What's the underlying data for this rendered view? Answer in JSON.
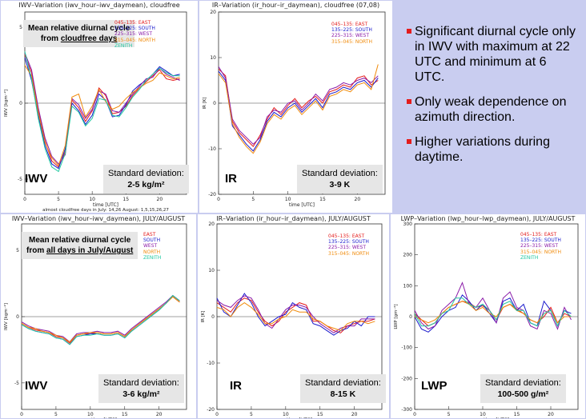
{
  "bullets": [
    "Significant diurnal cycle only in IWV with maximum at 22 UTC and minimum at 6 UTC.",
    "Only weak dependence on azimuth direction.",
    "Higher variations during daytime."
  ],
  "legend_colors": {
    "EAST": "#e41c1c",
    "SOUTH": "#1a1acc",
    "WEST": "#8a1aa8",
    "NORTH": "#f08a0a",
    "ZENITH": "#20c8a0"
  },
  "panels": [
    {
      "id": "p1",
      "title": "IWV–Variation (iwv_hour–iwv_daymean), cloudfree",
      "ylabel": "IWV [kgm⁻²]",
      "xlabel": "time [UTC]",
      "footer": "almost cloudfree days in July: 14,26 August: 1,5,15,26,27",
      "big": "IWV",
      "sd_label": "Standard deviation:",
      "sd_value": "2-5 kg/m²",
      "mean_line1": "Mean relative diurnal cycle",
      "mean_line2_pre": "from ",
      "mean_line2_u": "cloudfree days",
      "legend": [
        "045–135: EAST",
        "135–225: SOUTH",
        "225–315: WEST",
        "315–045: NORTH",
        "ZENITH"
      ],
      "xticks": [
        "0",
        "5",
        "10",
        "15",
        "20"
      ],
      "yticks": [
        "5",
        "0",
        "-5"
      ]
    },
    {
      "id": "p2",
      "title": "IR–Variation (ir_hour–ir_daymean), cloudfree (07,08)",
      "ylabel": "IR [K]",
      "xlabel": "time [UTC]",
      "big": "IR",
      "sd_label": "Standard deviation:",
      "sd_value": "3-9 K",
      "legend": [
        "045–135: EAST",
        "135–225: SOUTH",
        "225–315: WEST",
        "315–045: NORTH"
      ],
      "xticks": [
        "0",
        "5",
        "10",
        "15",
        "20"
      ],
      "yticks": [
        "20",
        "10",
        "0",
        "-10",
        "-20"
      ]
    },
    {
      "id": "p3",
      "title": "IWV–Variation (iwv_hour–iwv_daymean), JULY/AUGUST",
      "ylabel": "IWV [kgm⁻²]",
      "xlabel": "time [UTC]",
      "big": "IWV",
      "sd_label": "Standard deviation:",
      "sd_value": "3-6 kg/m²",
      "mean_line1": "Mean relative diurnal cycle",
      "mean_line2_pre": "from ",
      "mean_line2_u": "all days in July/August",
      "legend": [
        "EAST",
        "SOUTH",
        "WEST",
        "NORTH",
        "ZENITH"
      ],
      "xticks": [
        "0",
        "5",
        "10",
        "15",
        "20"
      ],
      "yticks": [
        "5",
        "0",
        "-5"
      ]
    },
    {
      "id": "p4",
      "title": "IR–Variation (ir_hour–ir_daymean), JULY/AUGUST",
      "ylabel": "IR [K]",
      "xlabel": "time [UTC]",
      "big": "IR",
      "sd_label": "Standard deviation:",
      "sd_value": "8-15 K",
      "legend": [
        "045–135: EAST",
        "135–225: SOUTH",
        "225–315: WEST",
        "315–045: NORTH"
      ],
      "xticks": [
        "0",
        "5",
        "10",
        "15",
        "20"
      ],
      "yticks": [
        "20",
        "10",
        "0",
        "-10",
        "-20"
      ]
    },
    {
      "id": "p5",
      "title": "LWP–Variation (lwp_hour–lwp_daymean), JULY/AUGUST",
      "ylabel": "LWP [gm⁻²]",
      "xlabel": "time [UTC]",
      "big": "LWP",
      "sd_label": "Standard deviation:",
      "sd_value": "100-500 g/m²",
      "legend": [
        "045–135: EAST",
        "135–225: SOUTH",
        "225–315: WEST",
        "315–045: NORTH",
        "ZENITH"
      ],
      "xticks": [
        "0",
        "5",
        "10",
        "15",
        "20"
      ],
      "yticks": [
        "300",
        "200",
        "100",
        "0",
        "-100",
        "-200",
        "-300"
      ]
    }
  ],
  "chart_data": [
    {
      "type": "line",
      "panel": "p1",
      "title": "IWV–Variation (iwv_hour–iwv_daymean), cloudfree",
      "xlabel": "time [UTC]",
      "ylabel": "IWV [kgm⁻²]",
      "xlim": [
        0,
        24
      ],
      "ylim": [
        -6,
        6
      ],
      "x": [
        0,
        1,
        2,
        3,
        4,
        5,
        6,
        7,
        8,
        9,
        10,
        11,
        12,
        13,
        14,
        15,
        16,
        17,
        18,
        19,
        20,
        21,
        22,
        23
      ],
      "series": [
        {
          "name": "045–135: EAST",
          "color": "#e41c1c",
          "values": [
            3.2,
            2.0,
            -0.5,
            -2.5,
            -3.8,
            -4.2,
            -3.2,
            0.2,
            -0.3,
            -1.2,
            -0.5,
            1.0,
            0.5,
            -0.7,
            -0.6,
            -0.2,
            0.5,
            1.0,
            1.4,
            1.8,
            2.2,
            1.6,
            1.5,
            1.6
          ]
        },
        {
          "name": "135–225: SOUTH",
          "color": "#1a1acc",
          "values": [
            3.0,
            1.5,
            -0.8,
            -2.8,
            -4.0,
            -4.3,
            -3.0,
            0.0,
            -0.5,
            -1.4,
            -0.8,
            0.6,
            0.2,
            -0.9,
            -0.8,
            -0.1,
            0.8,
            1.2,
            1.5,
            1.9,
            2.4,
            2.1,
            1.8,
            1.9
          ]
        },
        {
          "name": "225–315: WEST",
          "color": "#8a1aa8",
          "values": [
            3.3,
            2.2,
            -0.3,
            -2.3,
            -3.5,
            -4.0,
            -3.4,
            0.3,
            -0.1,
            -1.0,
            -0.4,
            0.8,
            0.6,
            -0.5,
            -0.6,
            0.0,
            0.6,
            1.1,
            1.6,
            1.7,
            2.3,
            1.9,
            1.7,
            1.5
          ]
        },
        {
          "name": "315–045: NORTH",
          "color": "#f08a0a",
          "values": [
            2.5,
            1.8,
            -0.6,
            -2.6,
            -3.6,
            -4.1,
            -2.8,
            0.4,
            0.6,
            -0.9,
            -0.2,
            0.9,
            0.1,
            -0.4,
            -0.2,
            0.3,
            0.7,
            1.0,
            1.3,
            1.5,
            2.0,
            1.8,
            1.6,
            1.7
          ]
        },
        {
          "name": "ZENITH",
          "color": "#20c8a0",
          "values": [
            3.4,
            1.6,
            -1.0,
            -3.0,
            -4.2,
            -4.5,
            -3.3,
            -0.2,
            -0.6,
            -1.5,
            -1.0,
            0.3,
            0.2,
            -0.8,
            -0.9,
            -0.3,
            0.4,
            0.9,
            1.5,
            1.9,
            2.3,
            2.0,
            1.8,
            1.8
          ]
        }
      ]
    },
    {
      "type": "line",
      "panel": "p2",
      "title": "IR–Variation (ir_hour–ir_daymean), cloudfree (07,08)",
      "xlabel": "time [UTC]",
      "ylabel": "IR [K]",
      "xlim": [
        0,
        24
      ],
      "ylim": [
        -20,
        20
      ],
      "x": [
        0,
        1,
        2,
        3,
        4,
        5,
        6,
        7,
        8,
        9,
        10,
        11,
        12,
        13,
        14,
        15,
        16,
        17,
        18,
        19,
        20,
        21,
        22,
        23
      ],
      "series": [
        {
          "name": "045–135: EAST",
          "color": "#e41c1c",
          "values": [
            7.5,
            6.0,
            -4.0,
            -6.5,
            -8.0,
            -9.5,
            -7.0,
            -3.5,
            -1.0,
            -2.5,
            -0.5,
            1.0,
            -1.0,
            0.5,
            1.5,
            0.0,
            2.5,
            3.0,
            4.0,
            3.5,
            5.5,
            6.0,
            4.0,
            5.0
          ]
        },
        {
          "name": "135–225: SOUTH",
          "color": "#1a1acc",
          "values": [
            7.0,
            5.0,
            -5.0,
            -7.0,
            -9.0,
            -10.5,
            -8.0,
            -4.0,
            -2.0,
            -3.0,
            -1.0,
            0.0,
            -2.0,
            -0.5,
            1.0,
            -1.0,
            2.0,
            2.5,
            3.5,
            3.0,
            4.5,
            5.0,
            3.5,
            5.5
          ]
        },
        {
          "name": "225–315: WEST",
          "color": "#8a1aa8",
          "values": [
            8.0,
            5.5,
            -3.5,
            -6.0,
            -7.5,
            -9.0,
            -7.5,
            -3.0,
            -1.5,
            -2.0,
            0.0,
            0.5,
            -1.5,
            0.0,
            2.0,
            0.5,
            3.0,
            3.5,
            4.5,
            4.0,
            5.0,
            5.5,
            4.5,
            6.0
          ]
        },
        {
          "name": "315–045: NORTH",
          "color": "#f08a0a",
          "values": [
            6.5,
            4.5,
            -4.5,
            -7.5,
            -9.5,
            -11.0,
            -8.5,
            -4.5,
            -2.5,
            -3.5,
            -1.5,
            -0.5,
            -2.5,
            -1.0,
            0.5,
            -1.5,
            1.5,
            2.0,
            3.0,
            2.5,
            4.0,
            4.5,
            3.0,
            8.5
          ]
        }
      ]
    },
    {
      "type": "line",
      "panel": "p3",
      "title": "IWV–Variation (iwv_hour–iwv_daymean), JULY/AUGUST",
      "xlabel": "time [UTC]",
      "ylabel": "IWV [kgm⁻²]",
      "xlim": [
        0,
        24
      ],
      "ylim": [
        -7,
        7
      ],
      "x": [
        0,
        1,
        2,
        3,
        4,
        5,
        6,
        7,
        8,
        9,
        10,
        11,
        12,
        13,
        14,
        15,
        16,
        17,
        18,
        19,
        20,
        21,
        22,
        23
      ],
      "series": [
        {
          "name": "EAST",
          "color": "#e41c1c",
          "values": [
            -0.5,
            -0.8,
            -1.0,
            -1.1,
            -1.2,
            -1.5,
            -1.6,
            -2.0,
            -1.4,
            -1.3,
            -1.3,
            -1.2,
            -1.3,
            -1.3,
            -1.2,
            -1.5,
            -1.0,
            -0.6,
            -0.2,
            0.2,
            0.6,
            1.0,
            1.5,
            1.1
          ]
        },
        {
          "name": "SOUTH",
          "color": "#1a1acc",
          "values": [
            -0.6,
            -0.9,
            -1.1,
            -1.2,
            -1.3,
            -1.6,
            -1.7,
            -2.1,
            -1.5,
            -1.4,
            -1.3,
            -1.3,
            -1.4,
            -1.4,
            -1.3,
            -1.6,
            -1.1,
            -0.7,
            -0.3,
            0.1,
            0.5,
            1.0,
            1.6,
            1.2
          ]
        },
        {
          "name": "WEST",
          "color": "#8a1aa8",
          "values": [
            -0.4,
            -0.7,
            -0.9,
            -1.0,
            -1.1,
            -1.4,
            -1.5,
            -1.9,
            -1.3,
            -1.2,
            -1.2,
            -1.1,
            -1.2,
            -1.2,
            -1.1,
            -1.4,
            -0.9,
            -0.5,
            -0.1,
            0.3,
            0.7,
            1.1,
            1.6,
            1.2
          ]
        },
        {
          "name": "NORTH",
          "color": "#f08a0a",
          "values": [
            -0.5,
            -0.8,
            -0.9,
            -1.1,
            -1.2,
            -1.4,
            -1.6,
            -1.9,
            -1.4,
            -1.3,
            -1.2,
            -1.2,
            -1.3,
            -1.3,
            -1.2,
            -1.5,
            -1.0,
            -0.6,
            -0.2,
            0.2,
            0.6,
            1.0,
            1.5,
            1.1
          ]
        },
        {
          "name": "ZENITH",
          "color": "#20c8a0",
          "values": [
            -0.6,
            -0.9,
            -1.1,
            -1.2,
            -1.3,
            -1.6,
            -1.7,
            -2.1,
            -1.5,
            -1.4,
            -1.4,
            -1.3,
            -1.4,
            -1.4,
            -1.3,
            -1.6,
            -1.1,
            -0.7,
            -0.3,
            0.1,
            0.5,
            1.0,
            1.6,
            1.2
          ]
        }
      ]
    },
    {
      "type": "line",
      "panel": "p4",
      "title": "IR–Variation (ir_hour–ir_daymean), JULY/AUGUST",
      "xlabel": "time [UTC]",
      "ylabel": "IR [K]",
      "xlim": [
        0,
        24
      ],
      "ylim": [
        -20,
        20
      ],
      "x": [
        0,
        1,
        2,
        3,
        4,
        5,
        6,
        7,
        8,
        9,
        10,
        11,
        12,
        13,
        14,
        15,
        16,
        17,
        18,
        19,
        20,
        21,
        22,
        23
      ],
      "series": [
        {
          "name": "045–135: EAST",
          "color": "#e41c1c",
          "values": [
            3.0,
            2.0,
            1.0,
            3.0,
            4.0,
            3.5,
            1.0,
            -1.0,
            -2.0,
            -1.0,
            1.0,
            2.0,
            3.0,
            2.5,
            -1.0,
            -1.0,
            -2.0,
            -3.0,
            -3.5,
            -2.0,
            -1.5,
            -1.0,
            -1.0,
            -0.5
          ]
        },
        {
          "name": "135–225: SOUTH",
          "color": "#1a1acc",
          "values": [
            4.0,
            1.0,
            0.0,
            2.5,
            5.0,
            3.0,
            0.0,
            -2.0,
            -1.0,
            0.0,
            0.5,
            3.0,
            2.0,
            1.5,
            -1.5,
            -2.0,
            -3.0,
            -4.0,
            -3.0,
            -2.5,
            -1.0,
            -2.0,
            0.0,
            0.0
          ]
        },
        {
          "name": "225–315: WEST",
          "color": "#8a1aa8",
          "values": [
            3.5,
            2.5,
            2.0,
            3.5,
            4.5,
            4.0,
            1.5,
            -1.5,
            -2.5,
            -0.5,
            1.5,
            2.5,
            2.5,
            2.0,
            0.0,
            -1.5,
            -2.5,
            -3.5,
            -2.5,
            -2.0,
            -2.0,
            -0.5,
            -0.5,
            -0.5
          ]
        },
        {
          "name": "315–045: NORTH",
          "color": "#f08a0a",
          "values": [
            2.0,
            1.5,
            0.0,
            2.0,
            3.0,
            2.0,
            0.5,
            -1.5,
            -1.5,
            -0.5,
            0.0,
            1.5,
            1.0,
            1.0,
            -0.5,
            -1.0,
            -2.0,
            -2.5,
            -3.0,
            -1.5,
            -1.0,
            -1.0,
            -1.5,
            -1.0
          ]
        }
      ]
    },
    {
      "type": "line",
      "panel": "p5",
      "title": "LWP–Variation (lwp_hour–lwp_daymean), JULY/AUGUST",
      "xlabel": "time [UTC]",
      "ylabel": "LWP [gm⁻²]",
      "xlim": [
        0,
        24
      ],
      "ylim": [
        -300,
        300
      ],
      "x": [
        0,
        1,
        2,
        3,
        4,
        5,
        6,
        7,
        8,
        9,
        10,
        11,
        12,
        13,
        14,
        15,
        16,
        17,
        18,
        19,
        20,
        21,
        22,
        23
      ],
      "series": [
        {
          "name": "045–135: EAST",
          "color": "#e41c1c",
          "values": [
            10,
            -10,
            -30,
            -20,
            10,
            30,
            40,
            50,
            45,
            30,
            35,
            20,
            -10,
            30,
            40,
            25,
            10,
            -10,
            -20,
            0,
            30,
            -20,
            10,
            0
          ]
        },
        {
          "name": "135–225: SOUTH",
          "color": "#1a1acc",
          "values": [
            0,
            -40,
            -50,
            -30,
            0,
            20,
            30,
            70,
            50,
            20,
            40,
            10,
            -20,
            50,
            60,
            20,
            40,
            -20,
            -30,
            50,
            20,
            -30,
            20,
            10
          ]
        },
        {
          "name": "225–315: WEST",
          "color": "#8a1aa8",
          "values": [
            20,
            -20,
            -40,
            -30,
            20,
            40,
            60,
            110,
            40,
            30,
            60,
            20,
            -20,
            60,
            80,
            30,
            20,
            -30,
            -40,
            20,
            10,
            -40,
            30,
            -10
          ]
        },
        {
          "name": "315–045: NORTH",
          "color": "#f08a0a",
          "values": [
            0,
            -10,
            -20,
            -10,
            10,
            30,
            40,
            50,
            40,
            20,
            30,
            10,
            0,
            30,
            40,
            20,
            10,
            -10,
            -20,
            10,
            20,
            -20,
            0,
            0
          ]
        },
        {
          "name": "ZENITH",
          "color": "#20c8a0",
          "values": [
            10,
            -30,
            -30,
            -20,
            10,
            20,
            60,
            60,
            40,
            30,
            40,
            20,
            -10,
            40,
            50,
            20,
            20,
            -20,
            -30,
            10,
            20,
            -30,
            20,
            0
          ]
        }
      ]
    }
  ]
}
